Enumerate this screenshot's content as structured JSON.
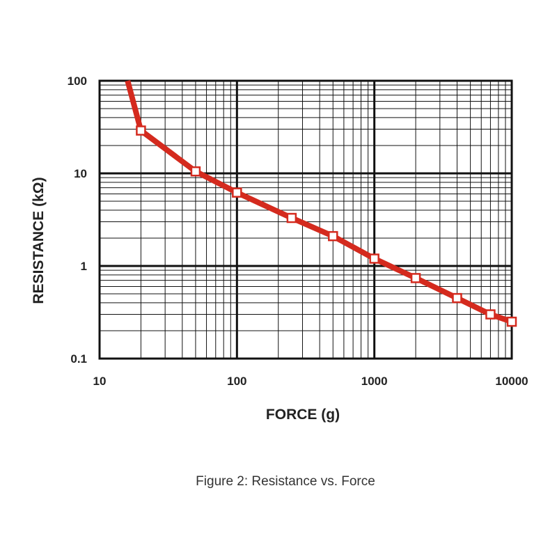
{
  "chart_data": {
    "type": "line",
    "xscale": "log",
    "yscale": "log",
    "xlim": [
      10,
      10000
    ],
    "ylim": [
      0.1,
      100
    ],
    "xlabel": "FORCE (g)",
    "ylabel": "RESISTANCE (kΩ)",
    "x_ticks": [
      "10",
      "100",
      "1000",
      "10000"
    ],
    "y_ticks": [
      "0.1",
      "1",
      "10",
      "100"
    ],
    "grid": true,
    "series": [
      {
        "color": "#d42a1e",
        "line_start": {
          "x": 16,
          "y": 100
        },
        "x": [
          20,
          50,
          100,
          250,
          500,
          1000,
          2000,
          4000,
          7000,
          10000
        ],
        "y": [
          29,
          10.5,
          6.2,
          3.3,
          2.1,
          1.2,
          0.74,
          0.45,
          0.3,
          0.25
        ]
      }
    ]
  },
  "caption": "Figure 2: Resistance vs. Force"
}
